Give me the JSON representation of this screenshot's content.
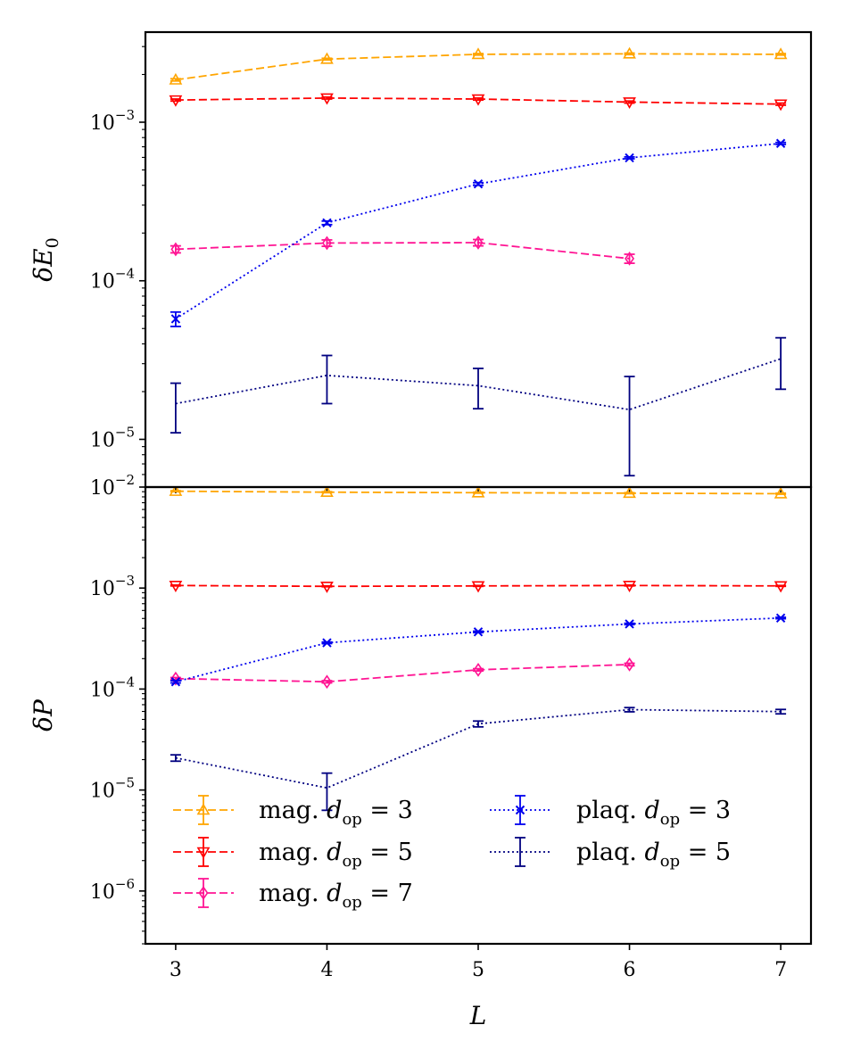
{
  "chart_data": [
    {
      "type": "line",
      "panel": "top",
      "ylabel": "δE",
      "ylabel_sub": "0",
      "xlabel": "",
      "yscale": "log",
      "ylim": [
        5e-06,
        0.0037
      ],
      "xlim": [
        2.8,
        7.2
      ],
      "ytick_labels": [
        {
          "base": "10",
          "exp": "−5"
        },
        {
          "base": "10",
          "exp": "−4"
        },
        {
          "base": "10",
          "exp": "−3"
        }
      ],
      "series": [
        {
          "key": "mag3",
          "name": "mag. d_op = 3",
          "color": "#ffa500",
          "marker": "triangle-up",
          "linestyle": "dashed",
          "x": [
            3,
            4,
            5,
            6,
            7
          ],
          "y": [
            0.00185,
            0.0025,
            0.00268,
            0.0027,
            0.00268
          ],
          "err": [
            3e-05,
            3e-05,
            3e-05,
            3e-05,
            3e-05
          ]
        },
        {
          "key": "mag5",
          "name": "mag. d_op = 5",
          "color": "#ff0000",
          "marker": "triangle-down",
          "linestyle": "dashed",
          "x": [
            3,
            4,
            5,
            6,
            7
          ],
          "y": [
            0.00138,
            0.00142,
            0.0014,
            0.00134,
            0.0013
          ],
          "err": [
            2e-05,
            2e-05,
            2e-05,
            2e-05,
            2e-05
          ]
        },
        {
          "key": "mag7",
          "name": "mag. d_op = 7",
          "color": "#ff1493",
          "marker": "diamond",
          "linestyle": "dashed",
          "x": [
            3,
            4,
            5,
            6
          ],
          "y": [
            0.000158,
            0.000173,
            0.000174,
            0.000138
          ],
          "err": [
            8e-06,
            8e-06,
            8e-06,
            9e-06
          ]
        },
        {
          "key": "plaq3",
          "name": "plaq. d_op = 3",
          "color": "#0000ee",
          "marker": "x",
          "linestyle": "dotted",
          "x": [
            3,
            4,
            5,
            6,
            7
          ],
          "y": [
            5.75e-05,
            0.000232,
            0.000408,
            0.000596,
            0.000735
          ],
          "err": [
            6e-06,
            6e-06,
            8e-06,
            8e-06,
            1e-05
          ]
        },
        {
          "key": "plaq5",
          "name": "plaq. d_op = 5",
          "color": "#000080",
          "marker": "none",
          "linestyle": "dotted",
          "x": [
            3,
            4,
            5,
            6,
            7
          ],
          "y": [
            1.68e-05,
            2.53e-05,
            2.18e-05,
            1.54e-05,
            3.22e-05
          ],
          "err": [
            5.8e-06,
            8.5e-06,
            6.2e-06,
            9.5e-06,
            1.15e-05
          ]
        }
      ]
    },
    {
      "type": "line",
      "panel": "bottom",
      "ylabel": "δP",
      "xlabel": "L",
      "yscale": "log",
      "ylim": [
        3e-07,
        0.01
      ],
      "xlim": [
        2.8,
        7.2
      ],
      "x_tick_labels": [
        "3",
        "4",
        "5",
        "6",
        "7"
      ],
      "ytick_labels": [
        {
          "base": "10",
          "exp": "−6"
        },
        {
          "base": "10",
          "exp": "−5"
        },
        {
          "base": "10",
          "exp": "−4"
        },
        {
          "base": "10",
          "exp": "−3"
        },
        {
          "base": "10",
          "exp": "−2"
        }
      ],
      "series": [
        {
          "key": "mag3",
          "name": "mag. d_op = 3",
          "color": "#ffa500",
          "marker": "triangle-up",
          "linestyle": "dashed",
          "x": [
            3,
            4,
            5,
            6,
            7
          ],
          "y": [
            0.0091,
            0.0089,
            0.0088,
            0.0087,
            0.0086
          ],
          "err": [
            0.0001,
            0.0001,
            0.0001,
            0.0001,
            0.0001
          ]
        },
        {
          "key": "mag5",
          "name": "mag. d_op = 5",
          "color": "#ff0000",
          "marker": "triangle-down",
          "linestyle": "dashed",
          "x": [
            3,
            4,
            5,
            6,
            7
          ],
          "y": [
            0.00106,
            0.00104,
            0.00105,
            0.00106,
            0.00105
          ],
          "err": [
            1e-05,
            1e-05,
            1e-05,
            1e-05,
            1e-05
          ]
        },
        {
          "key": "mag7",
          "name": "mag. d_op = 7",
          "color": "#ff1493",
          "marker": "diamond",
          "linestyle": "dashed",
          "x": [
            3,
            4,
            5,
            6
          ],
          "y": [
            0.000127,
            0.000118,
            0.000155,
            0.000175
          ],
          "err": [
            3e-06,
            3e-06,
            4e-06,
            5e-06
          ]
        },
        {
          "key": "plaq3",
          "name": "plaq. d_op = 3",
          "color": "#0000ee",
          "marker": "x",
          "linestyle": "dotted",
          "x": [
            3,
            4,
            5,
            6,
            7
          ],
          "y": [
            0.000118,
            0.000287,
            0.000368,
            0.000441,
            0.000505
          ],
          "err": [
            3e-06,
            5e-06,
            6e-06,
            7e-06,
            8e-06
          ]
        },
        {
          "key": "plaq5",
          "name": "plaq. d_op = 5",
          "color": "#000080",
          "marker": "none",
          "linestyle": "dotted",
          "x": [
            3,
            4,
            5,
            6,
            7
          ],
          "y": [
            2.08e-05,
            1.05e-05,
            4.52e-05,
            6.25e-05,
            5.98e-05
          ],
          "err": [
            1.5e-06,
            4.2e-06,
            3e-06,
            3e-06,
            3e-06
          ]
        }
      ]
    }
  ],
  "legend": {
    "placement": "lower-left of bottom panel",
    "entries": [
      {
        "key": "mag3",
        "prefix": "mag.",
        "var": "d",
        "sub": "op",
        "eq": "= 3"
      },
      {
        "key": "mag5",
        "prefix": "mag.",
        "var": "d",
        "sub": "op",
        "eq": "= 5"
      },
      {
        "key": "mag7",
        "prefix": "mag.",
        "var": "d",
        "sub": "op",
        "eq": "= 7"
      },
      {
        "key": "plaq3",
        "prefix": "plaq.",
        "var": "d",
        "sub": "op",
        "eq": "= 3"
      },
      {
        "key": "plaq5",
        "prefix": "plaq.",
        "var": "d",
        "sub": "op",
        "eq": "= 5"
      }
    ]
  }
}
